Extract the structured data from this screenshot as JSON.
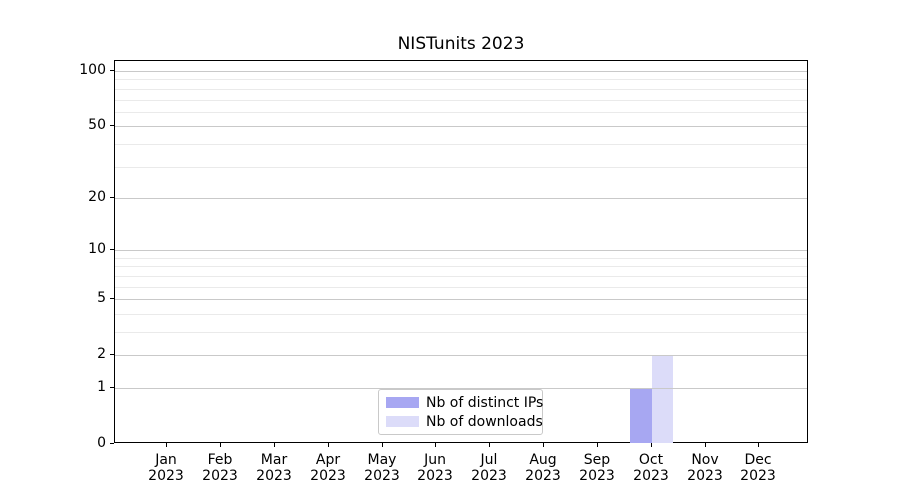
{
  "title": "NISTunits 2023",
  "colors": {
    "distinct_ips": "#a7a7f2",
    "downloads": "#dcdcf9",
    "grid_major": "#c9c9c9",
    "grid_minor": "#eaeaea",
    "axis": "#000000",
    "legend_border": "#c9c9c9",
    "background": "#ffffff"
  },
  "legend": {
    "items": [
      {
        "label": "Nb of distinct IPs",
        "color": "#a7a7f2"
      },
      {
        "label": "Nb of downloads",
        "color": "#dcdcf9"
      }
    ]
  },
  "chart_data": {
    "type": "bar",
    "title": "NISTunits 2023",
    "categories": [
      {
        "month": "Jan",
        "year": "2023"
      },
      {
        "month": "Feb",
        "year": "2023"
      },
      {
        "month": "Mar",
        "year": "2023"
      },
      {
        "month": "Apr",
        "year": "2023"
      },
      {
        "month": "May",
        "year": "2023"
      },
      {
        "month": "Jun",
        "year": "2023"
      },
      {
        "month": "Jul",
        "year": "2023"
      },
      {
        "month": "Aug",
        "year": "2023"
      },
      {
        "month": "Sep",
        "year": "2023"
      },
      {
        "month": "Oct",
        "year": "2023"
      },
      {
        "month": "Nov",
        "year": "2023"
      },
      {
        "month": "Dec",
        "year": "2023"
      }
    ],
    "series": [
      {
        "name": "Nb of distinct IPs",
        "color": "#a7a7f2",
        "values": [
          0,
          0,
          0,
          0,
          0,
          0,
          0,
          0,
          0,
          1,
          0,
          0
        ]
      },
      {
        "name": "Nb of downloads",
        "color": "#dcdcf9",
        "values": [
          0,
          0,
          0,
          0,
          0,
          0,
          0,
          0,
          0,
          2,
          0,
          0
        ]
      }
    ],
    "xlabel": "",
    "ylabel": "",
    "yscale": "log10(1+x)",
    "ylim": [
      0,
      113
    ],
    "y_major_ticks": [
      0,
      1,
      2,
      5,
      10,
      20,
      50,
      100
    ],
    "y_minor_ticks": [
      3,
      4,
      6,
      7,
      8,
      9,
      30,
      40,
      60,
      70,
      80,
      90
    ],
    "grid": true,
    "legend_position": "lower center"
  }
}
